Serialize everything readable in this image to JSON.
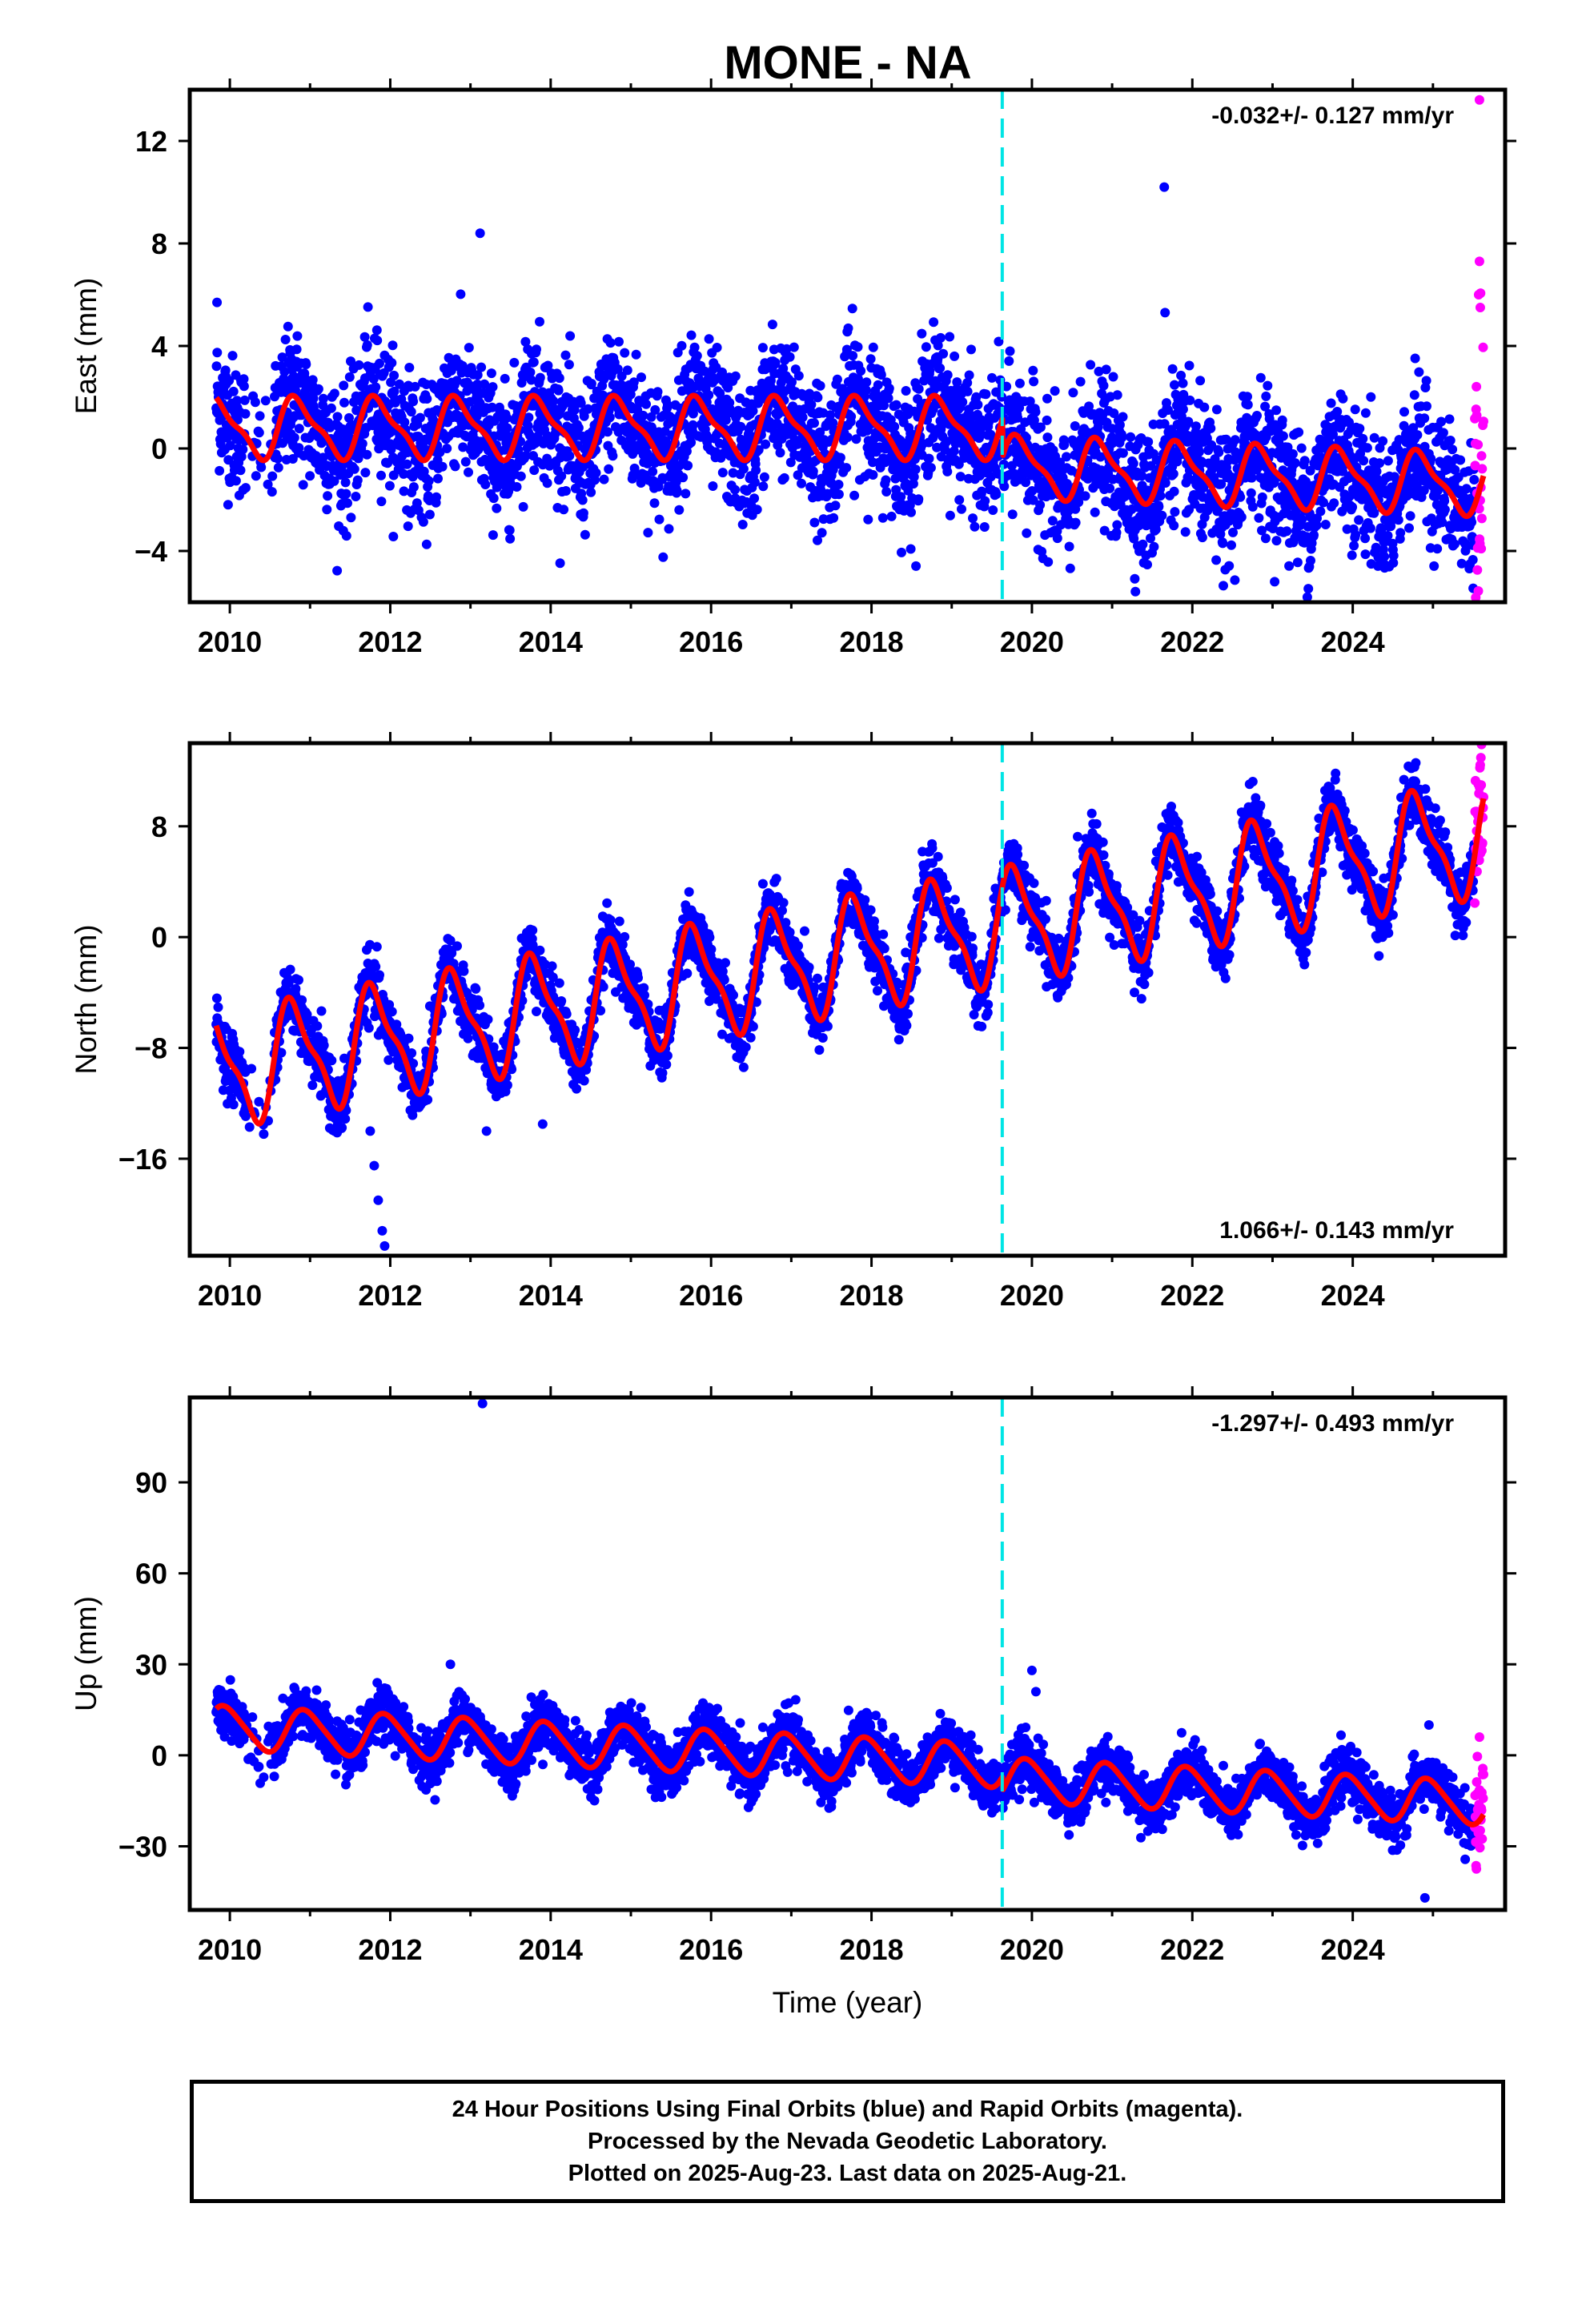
{
  "title": "MONE - NA",
  "colors": {
    "final": "#0000ff",
    "rapid": "#ff00ff",
    "model": "#ff0000",
    "event": "#00e5e5",
    "frame": "#000000"
  },
  "caption": {
    "line1": "24 Hour Positions Using Final Orbits (blue) and Rapid Orbits (magenta).",
    "line2": "Processed by the Nevada Geodetic Laboratory.",
    "line3": "Plotted on 2025-Aug-23. Last data on 2025-Aug-21."
  },
  "chart_data": [
    {
      "type": "scatter",
      "component": "east",
      "ylabel": "East (mm)",
      "xlabel": "",
      "xlim": [
        2009.5,
        2025.9
      ],
      "ylim": [
        -6.0,
        14.0
      ],
      "xticks": [
        2010,
        2012,
        2014,
        2016,
        2018,
        2020,
        2022,
        2024
      ],
      "yticks": [
        -4,
        0,
        4,
        8,
        12
      ],
      "rate": "-0.032+/- 0.127 mm/yr",
      "rate_position": "top-right",
      "data_start": 2009.83,
      "data_end": 2025.63,
      "rapid_start": 2025.52,
      "event_line_x": 2019.63,
      "model": {
        "trend": [
          0.8,
          0.9,
          -0.7,
          -1.4
        ],
        "annual_amplitude": 1.1,
        "annual_phase": 0.6,
        "semiannual_amplitude": 0.35
      },
      "scatter_sigma": 1.3,
      "outliers": [
        {
          "x": 2009.84,
          "y": 5.7
        },
        {
          "x": 2013.12,
          "y": 8.4
        },
        {
          "x": 2021.65,
          "y": 10.2
        },
        {
          "x": 2021.66,
          "y": 5.3
        },
        {
          "x": 2025.58,
          "y": 13.6,
          "rapid": true
        },
        {
          "x": 2025.58,
          "y": 7.3,
          "rapid": true
        },
        {
          "x": 2025.57,
          "y": 6.0,
          "rapid": true
        },
        {
          "x": 2025.59,
          "y": 5.5,
          "rapid": true
        }
      ]
    },
    {
      "type": "scatter",
      "component": "north",
      "ylabel": "North (mm)",
      "xlabel": "",
      "xlim": [
        2009.5,
        2025.9
      ],
      "ylim": [
        -23.0,
        14.0
      ],
      "xticks": [
        2010,
        2012,
        2014,
        2016,
        2018,
        2020,
        2022,
        2024
      ],
      "yticks": [
        -16,
        -8,
        0,
        8
      ],
      "rate": "1.066+/- 0.143 mm/yr",
      "rate_position": "bottom-right",
      "data_start": 2009.83,
      "data_end": 2025.63,
      "rapid_start": 2025.52,
      "event_line_x": 2019.63,
      "model": {
        "trend": [
          -9.5,
          1.066
        ],
        "annual_amplitude": 3.8,
        "annual_phase": 0.55,
        "semiannual_amplitude": 1.2
      },
      "scatter_sigma": 1.1,
      "outliers": [
        {
          "x": 2011.75,
          "y": -14.0
        },
        {
          "x": 2011.8,
          "y": -16.5
        },
        {
          "x": 2011.85,
          "y": -19.0
        },
        {
          "x": 2011.9,
          "y": -21.2
        },
        {
          "x": 2011.93,
          "y": -22.3
        },
        {
          "x": 2013.2,
          "y": -14.0
        },
        {
          "x": 2013.9,
          "y": -13.5
        },
        {
          "x": 2025.57,
          "y": 7.0,
          "rapid": true
        }
      ]
    },
    {
      "type": "scatter",
      "component": "up",
      "ylabel": "Up (mm)",
      "xlabel": "Time (year)",
      "xlim": [
        2009.5,
        2025.9
      ],
      "ylim": [
        -51.0,
        118.0
      ],
      "xticks": [
        2010,
        2012,
        2014,
        2016,
        2018,
        2020,
        2022,
        2024
      ],
      "yticks": [
        -30,
        0,
        30,
        60,
        90
      ],
      "rate": "-1.297+/- 0.493 mm/yr",
      "rate_position": "top-right",
      "data_start": 2009.83,
      "data_end": 2025.63,
      "rapid_start": 2025.52,
      "event_line_x": 2019.63,
      "model": {
        "trend": [
          9.0,
          -1.297,
          -4.5
        ],
        "annual_amplitude": 7.0,
        "annual_phase": 0.7,
        "semiannual_amplitude": 1.0
      },
      "scatter_sigma": 4.2,
      "outliers": [
        {
          "x": 2013.15,
          "y": 116.0
        },
        {
          "x": 2020.0,
          "y": 28.0
        },
        {
          "x": 2020.05,
          "y": 21.0
        },
        {
          "x": 2012.75,
          "y": 30.0
        },
        {
          "x": 2024.95,
          "y": 10.0
        },
        {
          "x": 2024.9,
          "y": -47.0
        },
        {
          "x": 2025.58,
          "y": 6.0,
          "rapid": true
        }
      ]
    }
  ]
}
